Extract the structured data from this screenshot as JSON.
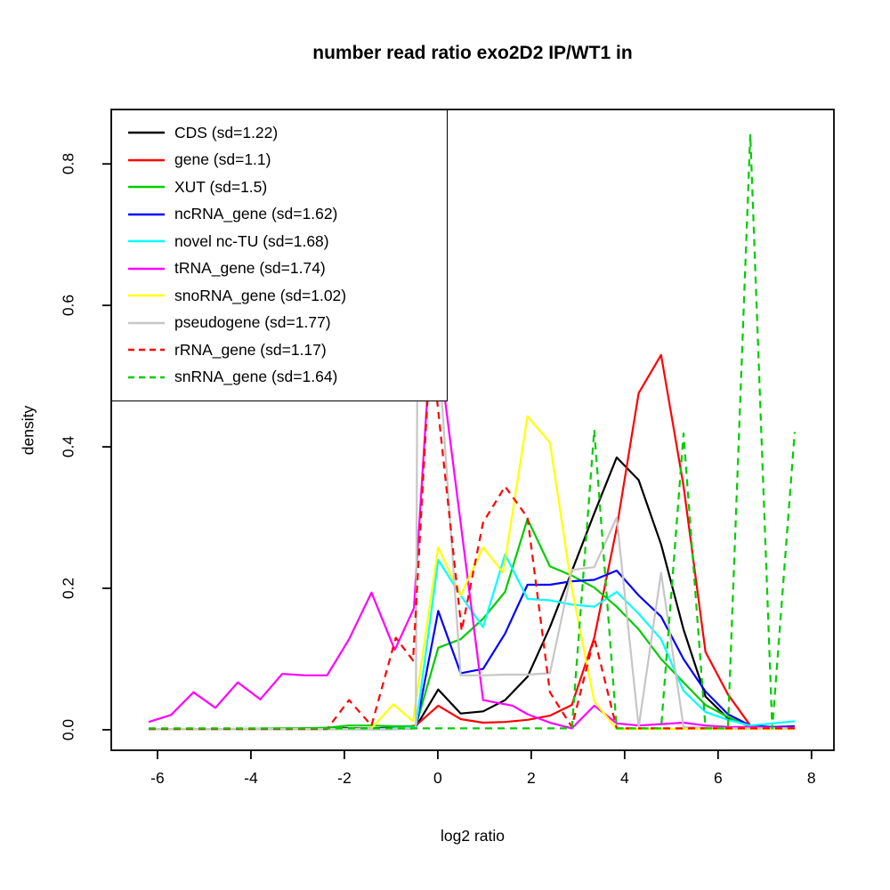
{
  "chart_data": {
    "type": "line",
    "title": "number read ratio exo2D2 IP/WT1 in",
    "xlabel": "log2 ratio",
    "ylabel": "density",
    "xlim": [
      -6.99,
      8.48
    ],
    "ylim": [
      -0.029,
      0.877
    ],
    "grid": false,
    "legend_position": "top-left",
    "x_ticks": [
      {
        "value": -6,
        "label": "-6"
      },
      {
        "value": -4,
        "label": "-4"
      },
      {
        "value": -2,
        "label": "-2"
      },
      {
        "value": 0,
        "label": "0"
      },
      {
        "value": 2,
        "label": "2"
      },
      {
        "value": 4,
        "label": "4"
      },
      {
        "value": 6,
        "label": "6"
      },
      {
        "value": 8,
        "label": "8"
      }
    ],
    "y_ticks": [
      {
        "value": 0.0,
        "label": "0.0"
      },
      {
        "value": 0.2,
        "label": "0.2"
      },
      {
        "value": 0.4,
        "label": "0.4"
      },
      {
        "value": 0.6,
        "label": "0.6"
      },
      {
        "value": 0.8,
        "label": "0.8"
      }
    ],
    "series": [
      {
        "name": "CDS",
        "label": "CDS (sd=1.22)",
        "color": "#000000",
        "dash": false,
        "points": [
          [
            -6.19,
            0.001
          ],
          [
            -5.71,
            0.001
          ],
          [
            -5.23,
            0.001
          ],
          [
            -4.76,
            0.001
          ],
          [
            -4.28,
            0.001
          ],
          [
            -3.8,
            0.001
          ],
          [
            -3.33,
            0.001
          ],
          [
            -2.85,
            0.002
          ],
          [
            -2.37,
            0.002
          ],
          [
            -1.9,
            0.002
          ],
          [
            -1.42,
            0.002
          ],
          [
            -0.94,
            0.003
          ],
          [
            -0.47,
            0.004
          ],
          [
            0.01,
            0.057
          ],
          [
            0.49,
            0.023
          ],
          [
            0.97,
            0.026
          ],
          [
            1.44,
            0.042
          ],
          [
            1.92,
            0.075
          ],
          [
            2.4,
            0.145
          ],
          [
            2.87,
            0.224
          ],
          [
            3.35,
            0.306
          ],
          [
            3.83,
            0.385
          ],
          [
            4.3,
            0.353
          ],
          [
            4.78,
            0.262
          ],
          [
            5.26,
            0.142
          ],
          [
            5.73,
            0.047
          ],
          [
            6.21,
            0.016
          ],
          [
            6.69,
            0.006
          ],
          [
            7.16,
            0.003
          ],
          [
            7.64,
            0.002
          ]
        ]
      },
      {
        "name": "gene",
        "label": "gene (sd=1.1)",
        "color": "#ff0000",
        "dash": false,
        "points": [
          [
            -6.19,
            0.001
          ],
          [
            -5.23,
            0.001
          ],
          [
            -4.28,
            0.001
          ],
          [
            -3.33,
            0.001
          ],
          [
            -2.37,
            0.001
          ],
          [
            -1.9,
            0.001
          ],
          [
            -1.42,
            0.001
          ],
          [
            -0.94,
            0.002
          ],
          [
            -0.47,
            0.006
          ],
          [
            0.01,
            0.034
          ],
          [
            0.49,
            0.015
          ],
          [
            0.97,
            0.01
          ],
          [
            1.44,
            0.011
          ],
          [
            1.92,
            0.014
          ],
          [
            2.4,
            0.02
          ],
          [
            2.87,
            0.035
          ],
          [
            3.35,
            0.13
          ],
          [
            3.83,
            0.285
          ],
          [
            4.3,
            0.476
          ],
          [
            4.78,
            0.53
          ],
          [
            5.26,
            0.345
          ],
          [
            5.73,
            0.11
          ],
          [
            6.21,
            0.05
          ],
          [
            6.69,
            0.006
          ],
          [
            7.16,
            0.003
          ],
          [
            7.64,
            0.003
          ]
        ]
      },
      {
        "name": "XUT",
        "label": "XUT (sd=1.5)",
        "color": "#00cd00",
        "dash": false,
        "points": [
          [
            -6.19,
            0.001
          ],
          [
            -5.23,
            0.001
          ],
          [
            -4.28,
            0.001
          ],
          [
            -3.33,
            0.002
          ],
          [
            -2.85,
            0.002
          ],
          [
            -2.37,
            0.003
          ],
          [
            -1.9,
            0.006
          ],
          [
            -1.42,
            0.006
          ],
          [
            -0.94,
            0.005
          ],
          [
            -0.47,
            0.005
          ],
          [
            0.01,
            0.116
          ],
          [
            0.49,
            0.128
          ],
          [
            0.97,
            0.157
          ],
          [
            1.44,
            0.195
          ],
          [
            1.92,
            0.298
          ],
          [
            2.4,
            0.231
          ],
          [
            2.87,
            0.218
          ],
          [
            3.35,
            0.201
          ],
          [
            3.83,
            0.174
          ],
          [
            4.3,
            0.142
          ],
          [
            4.78,
            0.1
          ],
          [
            5.26,
            0.067
          ],
          [
            5.73,
            0.035
          ],
          [
            6.21,
            0.018
          ],
          [
            6.69,
            0.004
          ],
          [
            7.16,
            0.003
          ],
          [
            7.64,
            0.004
          ]
        ]
      },
      {
        "name": "ncRNA_gene",
        "label": "ncRNA_gene (sd=1.62)",
        "color": "#0000ff",
        "dash": false,
        "points": [
          [
            -6.19,
            0.001
          ],
          [
            -4.28,
            0.001
          ],
          [
            -2.37,
            0.001
          ],
          [
            -1.42,
            0.001
          ],
          [
            -0.94,
            0.001
          ],
          [
            -0.47,
            0.002
          ],
          [
            0.01,
            0.168
          ],
          [
            0.49,
            0.08
          ],
          [
            0.97,
            0.086
          ],
          [
            1.44,
            0.136
          ],
          [
            1.92,
            0.205
          ],
          [
            2.4,
            0.205
          ],
          [
            2.87,
            0.21
          ],
          [
            3.35,
            0.212
          ],
          [
            3.83,
            0.225
          ],
          [
            4.3,
            0.19
          ],
          [
            4.78,
            0.16
          ],
          [
            5.26,
            0.1
          ],
          [
            5.73,
            0.054
          ],
          [
            6.21,
            0.022
          ],
          [
            6.69,
            0.006
          ],
          [
            7.16,
            0.004
          ],
          [
            7.64,
            0.005
          ]
        ]
      },
      {
        "name": "novel nc-TU",
        "label": "novel nc-TU (sd=1.68)",
        "color": "#00ffff",
        "dash": false,
        "points": [
          [
            -6.19,
            0.001
          ],
          [
            -4.28,
            0.001
          ],
          [
            -2.37,
            0.001
          ],
          [
            -1.42,
            0.001
          ],
          [
            -0.94,
            0.002
          ],
          [
            -0.47,
            0.003
          ],
          [
            0.01,
            0.24
          ],
          [
            0.49,
            0.19
          ],
          [
            0.97,
            0.145
          ],
          [
            1.44,
            0.248
          ],
          [
            1.92,
            0.185
          ],
          [
            2.4,
            0.183
          ],
          [
            2.87,
            0.177
          ],
          [
            3.35,
            0.174
          ],
          [
            3.83,
            0.195
          ],
          [
            4.3,
            0.164
          ],
          [
            4.78,
            0.128
          ],
          [
            5.26,
            0.055
          ],
          [
            5.73,
            0.025
          ],
          [
            6.21,
            0.014
          ],
          [
            6.69,
            0.006
          ],
          [
            7.16,
            0.009
          ],
          [
            7.64,
            0.012
          ]
        ]
      },
      {
        "name": "tRNA_gene",
        "label": "tRNA_gene (sd=1.74)",
        "color": "#ff00ff",
        "dash": false,
        "points": [
          [
            -6.19,
            0.011
          ],
          [
            -5.71,
            0.021
          ],
          [
            -5.23,
            0.053
          ],
          [
            -4.76,
            0.031
          ],
          [
            -4.28,
            0.067
          ],
          [
            -3.8,
            0.043
          ],
          [
            -3.33,
            0.079
          ],
          [
            -2.85,
            0.077
          ],
          [
            -2.37,
            0.077
          ],
          [
            -1.9,
            0.128
          ],
          [
            -1.42,
            0.194
          ],
          [
            -0.92,
            0.113
          ],
          [
            -0.51,
            0.172
          ],
          [
            -0.1,
            0.6
          ],
          [
            0.97,
            0.042
          ],
          [
            1.6,
            0.034
          ],
          [
            1.92,
            0.022
          ],
          [
            2.4,
            0.01
          ],
          [
            2.87,
            0.002
          ],
          [
            3.35,
            0.034
          ],
          [
            3.83,
            0.009
          ],
          [
            4.3,
            0.006
          ],
          [
            4.78,
            0.008
          ],
          [
            5.26,
            0.01
          ],
          [
            5.73,
            0.006
          ],
          [
            6.21,
            0.004
          ],
          [
            6.69,
            0.004
          ],
          [
            7.16,
            0.003
          ],
          [
            7.64,
            0.003
          ]
        ]
      },
      {
        "name": "snoRNA_gene",
        "label": "snoRNA_gene (sd=1.02)",
        "color": "#ffff00",
        "dash": false,
        "points": [
          [
            -6.19,
            0.001
          ],
          [
            -4.28,
            0.001
          ],
          [
            -2.85,
            0.001
          ],
          [
            -2.37,
            0.001
          ],
          [
            -1.9,
            0.001
          ],
          [
            -1.42,
            0.002
          ],
          [
            -0.95,
            0.036
          ],
          [
            -0.53,
            0.012
          ],
          [
            0.01,
            0.258
          ],
          [
            0.49,
            0.19
          ],
          [
            0.97,
            0.258
          ],
          [
            1.4,
            0.222
          ],
          [
            1.92,
            0.443
          ],
          [
            2.4,
            0.406
          ],
          [
            2.87,
            0.2
          ],
          [
            3.35,
            0.04
          ],
          [
            3.83,
            0.001
          ],
          [
            4.3,
            0.001
          ],
          [
            5.26,
            0.001
          ],
          [
            6.21,
            0.001
          ],
          [
            7.16,
            0.001
          ],
          [
            7.64,
            0.001
          ]
        ]
      },
      {
        "name": "pseudogene",
        "label": "pseudogene (sd=1.77)",
        "color": "#c6c6c6",
        "dash": false,
        "points": [
          [
            -6.19,
            0.001
          ],
          [
            -4.28,
            0.001
          ],
          [
            -2.37,
            0.001
          ],
          [
            -1.42,
            0.001
          ],
          [
            -0.94,
            0.001
          ],
          [
            -0.47,
            0.002
          ],
          [
            -0.44,
            0.48
          ],
          [
            0.03,
            0.52
          ],
          [
            0.49,
            0.077
          ],
          [
            0.97,
            0.077
          ],
          [
            1.44,
            0.078
          ],
          [
            1.92,
            0.078
          ],
          [
            2.4,
            0.08
          ],
          [
            2.87,
            0.226
          ],
          [
            3.35,
            0.23
          ],
          [
            3.83,
            0.3
          ],
          [
            4.3,
            0.004
          ],
          [
            4.78,
            0.222
          ],
          [
            5.26,
            0.004
          ],
          [
            5.73,
            0.003
          ],
          [
            6.21,
            0.002
          ],
          [
            6.69,
            0.002
          ],
          [
            7.16,
            0.002
          ],
          [
            7.64,
            0.002
          ]
        ]
      },
      {
        "name": "rRNA_gene",
        "label": "rRNA_gene (sd=1.17)",
        "color": "#ff0000",
        "dash": true,
        "points": [
          [
            -6.19,
            0.001
          ],
          [
            -5.23,
            0.001
          ],
          [
            -4.28,
            0.001
          ],
          [
            -3.33,
            0.001
          ],
          [
            -2.85,
            0.001
          ],
          [
            -2.37,
            0.001
          ],
          [
            -1.9,
            0.042
          ],
          [
            -1.42,
            0.006
          ],
          [
            -0.9,
            0.13
          ],
          [
            -0.53,
            0.098
          ],
          [
            -0.15,
            0.55
          ],
          [
            0.51,
            0.14
          ],
          [
            0.97,
            0.293
          ],
          [
            1.44,
            0.344
          ],
          [
            1.92,
            0.3
          ],
          [
            2.4,
            0.053
          ],
          [
            2.87,
            0.004
          ],
          [
            3.35,
            0.13
          ],
          [
            3.83,
            0.002
          ],
          [
            4.3,
            0.002
          ],
          [
            4.78,
            0.002
          ],
          [
            5.26,
            0.002
          ],
          [
            5.73,
            0.002
          ],
          [
            6.21,
            0.002
          ],
          [
            6.69,
            0.002
          ],
          [
            7.16,
            0.002
          ],
          [
            7.64,
            0.002
          ]
        ]
      },
      {
        "name": "snRNA_gene",
        "label": "snRNA_gene (sd=1.64)",
        "color": "#00cd00",
        "dash": true,
        "points": [
          [
            -6.19,
            0.002
          ],
          [
            -5.23,
            0.002
          ],
          [
            -4.28,
            0.002
          ],
          [
            -3.33,
            0.002
          ],
          [
            -2.37,
            0.002
          ],
          [
            -1.42,
            0.002
          ],
          [
            -0.47,
            0.002
          ],
          [
            0.49,
            0.002
          ],
          [
            1.44,
            0.002
          ],
          [
            2.4,
            0.002
          ],
          [
            2.87,
            0.002
          ],
          [
            3.35,
            0.424
          ],
          [
            3.83,
            0.002
          ],
          [
            4.3,
            0.002
          ],
          [
            4.78,
            0.002
          ],
          [
            5.26,
            0.419
          ],
          [
            5.73,
            0.002
          ],
          [
            6.21,
            0.002
          ],
          [
            6.69,
            0.842
          ],
          [
            7.16,
            0.002
          ],
          [
            7.64,
            0.421
          ]
        ]
      }
    ]
  }
}
